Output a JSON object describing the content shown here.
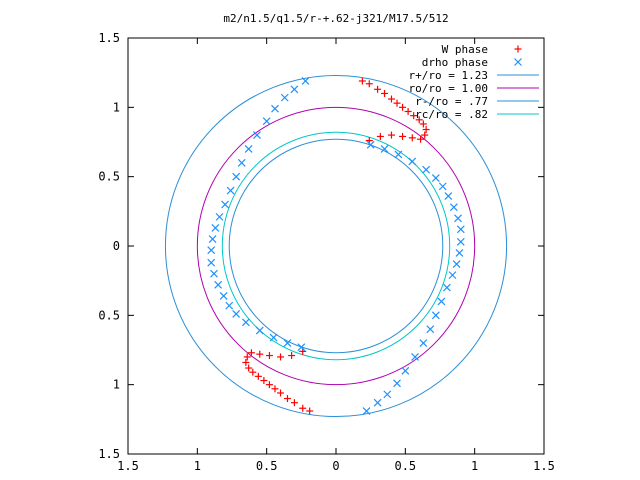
{
  "chart_data": {
    "type": "scatter",
    "title": "m2/n1.5/q1.5/r-+.62-j321/M17.5/512",
    "xlim": [
      -1.5,
      1.5
    ],
    "ylim": [
      -1.5,
      1.5
    ],
    "x_ticks": [
      -1.5,
      -1,
      -0.5,
      0,
      0.5,
      1,
      1.5
    ],
    "x_tick_labels": [
      "1.5",
      "1",
      "0.5",
      "0",
      "0.5",
      "1",
      "1.5"
    ],
    "y_ticks": [
      1.5,
      1,
      0.5,
      0,
      -0.5,
      -1,
      -1.5
    ],
    "y_tick_labels": [
      "1.5",
      "1",
      "0.5",
      "0",
      "0.5",
      "1",
      "1.5"
    ],
    "grid": false,
    "legend_position": "top-right",
    "series": [
      {
        "name": "W phase",
        "marker": "+",
        "color": "#ff0000",
        "points": [
          [
            0.24,
            0.76
          ],
          [
            0.32,
            0.79
          ],
          [
            0.4,
            0.8
          ],
          [
            0.48,
            0.79
          ],
          [
            0.55,
            0.78
          ],
          [
            0.61,
            0.77
          ],
          [
            0.64,
            0.8
          ],
          [
            0.65,
            0.84
          ],
          [
            0.63,
            0.88
          ],
          [
            0.6,
            0.91
          ],
          [
            0.56,
            0.94
          ],
          [
            0.52,
            0.97
          ],
          [
            0.48,
            1.0
          ],
          [
            0.44,
            1.03
          ],
          [
            0.4,
            1.06
          ],
          [
            0.35,
            1.1
          ],
          [
            0.3,
            1.13
          ],
          [
            0.24,
            1.17
          ],
          [
            0.19,
            1.19
          ],
          [
            -0.24,
            -0.76
          ],
          [
            -0.32,
            -0.79
          ],
          [
            -0.4,
            -0.8
          ],
          [
            -0.48,
            -0.79
          ],
          [
            -0.55,
            -0.78
          ],
          [
            -0.61,
            -0.77
          ],
          [
            -0.64,
            -0.8
          ],
          [
            -0.65,
            -0.84
          ],
          [
            -0.63,
            -0.88
          ],
          [
            -0.6,
            -0.91
          ],
          [
            -0.56,
            -0.94
          ],
          [
            -0.52,
            -0.97
          ],
          [
            -0.48,
            -1.0
          ],
          [
            -0.44,
            -1.03
          ],
          [
            -0.4,
            -1.06
          ],
          [
            -0.35,
            -1.1
          ],
          [
            -0.3,
            -1.13
          ],
          [
            -0.24,
            -1.17
          ],
          [
            -0.19,
            -1.19
          ]
        ]
      },
      {
        "name": "drho phase",
        "marker": "x",
        "color": "#1e90ff",
        "points": [
          [
            0.25,
            0.73
          ],
          [
            0.35,
            0.7
          ],
          [
            0.45,
            0.66
          ],
          [
            0.55,
            0.61
          ],
          [
            0.65,
            0.55
          ],
          [
            0.72,
            0.49
          ],
          [
            0.77,
            0.43
          ],
          [
            0.81,
            0.36
          ],
          [
            0.85,
            0.28
          ],
          [
            0.88,
            0.2
          ],
          [
            0.9,
            0.12
          ],
          [
            0.9,
            0.03
          ],
          [
            0.89,
            -0.05
          ],
          [
            0.87,
            -0.13
          ],
          [
            0.84,
            -0.21
          ],
          [
            0.8,
            -0.3
          ],
          [
            0.76,
            -0.4
          ],
          [
            0.72,
            -0.5
          ],
          [
            0.68,
            -0.6
          ],
          [
            0.63,
            -0.7
          ],
          [
            0.57,
            -0.8
          ],
          [
            0.5,
            -0.9
          ],
          [
            0.44,
            -0.99
          ],
          [
            0.37,
            -1.07
          ],
          [
            0.3,
            -1.13
          ],
          [
            0.22,
            -1.19
          ],
          [
            -0.25,
            -0.73
          ],
          [
            -0.35,
            -0.7
          ],
          [
            -0.45,
            -0.66
          ],
          [
            -0.55,
            -0.61
          ],
          [
            -0.65,
            -0.55
          ],
          [
            -0.72,
            -0.49
          ],
          [
            -0.77,
            -0.43
          ],
          [
            -0.81,
            -0.36
          ],
          [
            -0.85,
            -0.28
          ],
          [
            -0.88,
            -0.2
          ],
          [
            -0.9,
            -0.12
          ],
          [
            -0.9,
            -0.03
          ],
          [
            -0.89,
            0.05
          ],
          [
            -0.87,
            0.13
          ],
          [
            -0.84,
            0.21
          ],
          [
            -0.8,
            0.3
          ],
          [
            -0.76,
            0.4
          ],
          [
            -0.72,
            0.5
          ],
          [
            -0.68,
            0.6
          ],
          [
            -0.63,
            0.7
          ],
          [
            -0.57,
            0.8
          ],
          [
            -0.5,
            0.9
          ],
          [
            -0.44,
            0.99
          ],
          [
            -0.37,
            1.07
          ],
          [
            -0.3,
            1.13
          ],
          [
            -0.22,
            1.19
          ]
        ]
      },
      {
        "name": "r+/ro = 1.23",
        "type": "circle",
        "radius": 1.23,
        "color": "#2b8fd6"
      },
      {
        "name": "ro/ro = 1.00",
        "type": "circle",
        "radius": 1.0,
        "color": "#b000b0"
      },
      {
        "name": "r-/ro = .77",
        "type": "circle",
        "radius": 0.77,
        "color": "#2b8fd6"
      },
      {
        "name": "rc/ro = .82",
        "type": "circle",
        "radius": 0.82,
        "color": "#00c8c8"
      }
    ]
  }
}
